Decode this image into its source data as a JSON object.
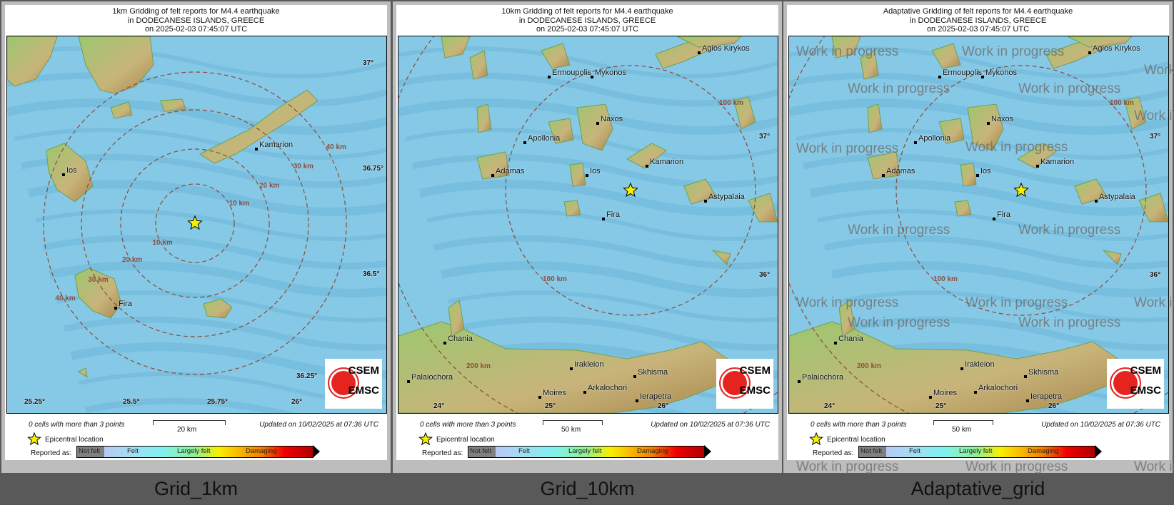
{
  "panels": [
    {
      "caption": "Grid_1km",
      "title_lines": [
        "1km Gridding of felt reports for M4.4 earthquake",
        "in DODECANESE ISLANDS, GREECE",
        "on  2025-02-03 07:45:07 UTC"
      ],
      "map": {
        "places": [
          "Ios",
          "Kamarion",
          "Fira"
        ],
        "ring_labels": [
          "10 km",
          "20 km",
          "30 km",
          "40 km"
        ],
        "lon_ticks": [
          "25.25°",
          "25.5°",
          "25.75°",
          "26°"
        ],
        "lat_ticks": [
          "37°",
          "36.75°",
          "36.5°",
          "36.25°"
        ]
      },
      "footer": {
        "cells_note": "0 cells with more than 3 points",
        "scale_label": "20 km",
        "updated": "Updated on 10/02/2025 at 07:36 UTC"
      },
      "watermark": false
    },
    {
      "caption": "Grid_10km",
      "title_lines": [
        "10km Gridding of felt reports for M4.4 earthquake",
        "in DODECANESE ISLANDS, GREECE",
        "on  2025-02-03 07:45:07 UTC"
      ],
      "map": {
        "places": [
          "Agios Kirykos",
          "Ermoupolis",
          "Mykonos",
          "Naxos",
          "Apollonia",
          "Adamas",
          "Ios",
          "Kamarion",
          "Astypalaia",
          "Fira",
          "Chania",
          "Irakleion",
          "Skhisma",
          "Palaiochora",
          "Arkalochori",
          "Moires",
          "Ierapetra"
        ],
        "ring_labels": [
          "100 km",
          "100 km",
          "200 km"
        ],
        "lon_ticks": [
          "24°",
          "25°",
          "26°"
        ],
        "lat_ticks": [
          "37°",
          "36°"
        ]
      },
      "footer": {
        "cells_note": "0 cells with more than 3 points",
        "scale_label": "50 km",
        "updated": "Updated on 10/02/2025 at 07:36 UTC"
      },
      "watermark": false
    },
    {
      "caption": "Adaptative_grid",
      "title_lines": [
        "Adaptative Gridding of felt reports for M4.4 earthquake",
        "in DODECANESE ISLANDS, GREECE",
        "on  2025-02-03 07:45:07 UTC"
      ],
      "map": {
        "places": [
          "Agios Kirykos",
          "Ermoupolis",
          "Mykonos",
          "Naxos",
          "Apollonia",
          "Adamas",
          "Ios",
          "Kamarion",
          "Astypalaia",
          "Fira",
          "Chania",
          "Irakleion",
          "Skhisma",
          "Palaiochora",
          "Arkalochori",
          "Moires",
          "Ierapetra"
        ],
        "ring_labels": [
          "100 km",
          "100 km",
          "200 km"
        ],
        "lon_ticks": [
          "24°",
          "25°",
          "26°"
        ],
        "lat_ticks": [
          "37°",
          "36°"
        ]
      },
      "footer": {
        "cells_note": "0 cells with more than 3 points",
        "scale_label": "50 km",
        "updated": "Updated on 10/02/2025 at 07:36 UTC"
      },
      "watermark": true
    }
  ],
  "legend": {
    "epicentral": "Epicentral location",
    "reported_as": "Reported as:",
    "scale": [
      "Not felt",
      "Felt",
      "Largely felt",
      "Damaging"
    ]
  },
  "logo": {
    "top": "CSEM",
    "bottom": "EMSC"
  },
  "watermark_text": "Work in progress",
  "colors": {
    "sea": "#86c9e6",
    "land_low": "#9cc76f",
    "land_high": "#c8b47a",
    "ring": "#8b4a3a",
    "star": "#f5f000",
    "not_felt": "#808080",
    "damaging": "#f00000"
  }
}
